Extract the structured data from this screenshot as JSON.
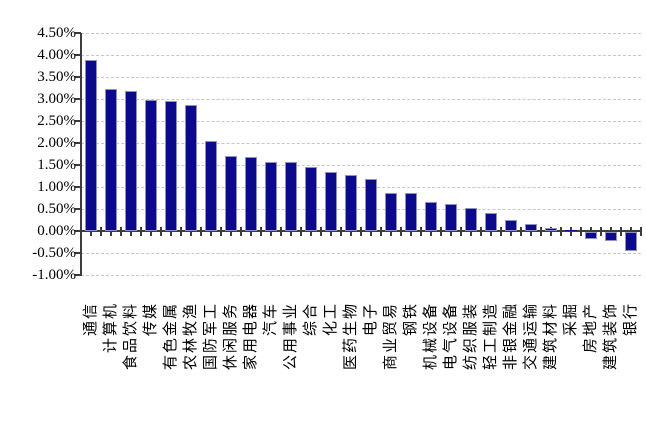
{
  "chart_data": {
    "type": "bar",
    "title": "",
    "xlabel": "",
    "ylabel": "",
    "ylim": [
      -1.0,
      4.5
    ],
    "y_step": 0.5,
    "grid": "horizontal-dashed",
    "legend": "none",
    "bar_color": "#0a0a8a",
    "bar_border_color": "#8f8fc2",
    "y_tick_labels": [
      "4.50%",
      "4.00%",
      "3.50%",
      "3.00%",
      "2.50%",
      "2.00%",
      "1.50%",
      "1.00%",
      "0.50%",
      "0.00%",
      "-0.50%",
      "-1.00%"
    ],
    "categories": [
      "通信",
      "计算机",
      "食品饮料",
      "传媒",
      "有色金属",
      "农林牧渔",
      "国防军工",
      "休闲服务",
      "家用电器",
      "汽车",
      "公用事业",
      "综合",
      "化工",
      "医药生物",
      "电子",
      "商业贸易",
      "钢铁",
      "机械设备",
      "电气设备",
      "纺织服装",
      "轻工制造",
      "非银金融",
      "交通运输",
      "建筑材料",
      "采掘",
      "房地产",
      "建筑装饰",
      "银行"
    ],
    "values": [
      3.88,
      3.22,
      3.19,
      2.97,
      2.95,
      2.86,
      2.05,
      1.71,
      1.68,
      1.57,
      1.57,
      1.46,
      1.33,
      1.28,
      1.18,
      0.87,
      0.87,
      0.67,
      0.62,
      0.52,
      0.41,
      0.24,
      0.15,
      0.06,
      0.01,
      -0.17,
      -0.2,
      -0.43
    ],
    "value_unit": "%"
  }
}
